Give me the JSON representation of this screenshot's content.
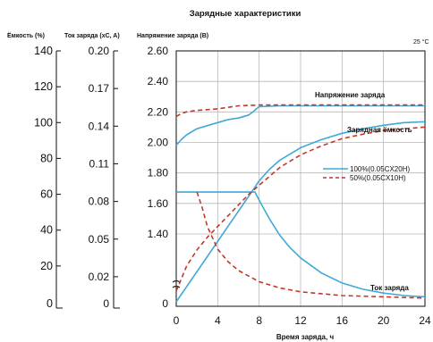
{
  "chart_data": {
    "type": "line",
    "title": "Зарядные характеристики",
    "temperature": "25 °C",
    "xlabel": "Время заряда, ч",
    "x_ticks": [
      "0",
      "4",
      "8",
      "12",
      "16",
      "20",
      "24"
    ],
    "xlim": [
      0,
      24
    ],
    "axes": {
      "capacity": {
        "label": "Ёмкость (%)",
        "ticks": [
          "140",
          "120",
          "100",
          "80",
          "60",
          "40",
          "20",
          "0"
        ]
      },
      "current": {
        "label": "Ток заряда (xC, A)",
        "ticks": [
          "0.20",
          "0.17",
          "0.14",
          "0.11",
          "0.08",
          "0.05",
          "0.02",
          "0"
        ]
      },
      "voltage": {
        "label": "Напряжение заряда (В)",
        "ticks": [
          "2.60",
          "2.40",
          "2.20",
          "2.00",
          "1.80",
          "1.60",
          "1.40",
          "0"
        ]
      }
    },
    "grid": true,
    "annotations": {
      "voltage": "Напряжение заряда",
      "capacity": "Зарядная ёмкость",
      "current": "Ток заряда"
    },
    "legend": {
      "position": "center-right",
      "items": [
        {
          "label": "100%(0.05CX20H)",
          "color": "#3fa9d8",
          "style": "solid"
        },
        {
          "label": "50%(0.05CX10H)",
          "color": "#c0392b",
          "style": "dashed"
        }
      ]
    },
    "series": [
      {
        "name": "100%(0.05CX20H)",
        "quantity": "voltage",
        "unit": "V",
        "color": "#3fa9d8",
        "style": "solid",
        "x": [
          0,
          0.5,
          1,
          2,
          3,
          4,
          5,
          6,
          7,
          7.4,
          8,
          10,
          14,
          18,
          24
        ],
        "y": [
          1.98,
          2.02,
          2.05,
          2.09,
          2.11,
          2.13,
          2.15,
          2.16,
          2.18,
          2.2,
          2.235,
          2.24,
          2.24,
          2.24,
          2.24
        ]
      },
      {
        "name": "100%(0.05CX20H)",
        "quantity": "capacity",
        "unit": "%",
        "color": "#3fa9d8",
        "style": "solid",
        "x": [
          0,
          7.6,
          8,
          9,
          10,
          12,
          14,
          16,
          18,
          20,
          22,
          24
        ],
        "y": [
          0,
          64,
          67.5,
          74,
          79,
          86,
          90.5,
          94,
          96.5,
          98.5,
          100,
          100.5
        ]
      },
      {
        "name": "100%(0.05CX20H)",
        "quantity": "current",
        "unit": "xC",
        "color": "#3fa9d8",
        "style": "solid",
        "x": [
          0,
          7.6,
          8,
          9,
          10,
          11,
          12,
          14,
          16,
          18,
          20,
          22,
          24
        ],
        "y": [
          0.0875,
          0.0875,
          0.081,
          0.066,
          0.053,
          0.043,
          0.035,
          0.023,
          0.015,
          0.01,
          0.007,
          0.005,
          0.004
        ]
      },
      {
        "name": "50%(0.05CX10H)",
        "quantity": "voltage",
        "unit": "V",
        "color": "#c0392b",
        "style": "dashed",
        "x": [
          0,
          0.5,
          1,
          2,
          3,
          4,
          5,
          6,
          8,
          12,
          16,
          20,
          24
        ],
        "y": [
          2.17,
          2.19,
          2.2,
          2.21,
          2.215,
          2.22,
          2.23,
          2.24,
          2.245,
          2.245,
          2.245,
          2.245,
          2.245
        ]
      },
      {
        "name": "50%(0.05CX10H)",
        "quantity": "capacity",
        "unit": "%",
        "color": "#c0392b",
        "style": "dashed",
        "x": [
          0,
          1,
          2,
          3,
          4,
          5,
          6,
          7,
          8,
          10,
          12,
          14,
          16,
          18,
          20,
          24
        ],
        "y": [
          6,
          20,
          29,
          36,
          42,
          48,
          54,
          60,
          65,
          75,
          82,
          87,
          91,
          93.5,
          95.5,
          97.5
        ]
      },
      {
        "name": "50%(0.05CX10H)",
        "quantity": "current",
        "unit": "xC",
        "color": "#c0392b",
        "style": "dashed",
        "x": [
          2,
          2.5,
          3,
          4,
          5,
          6,
          8,
          10,
          12,
          16,
          20,
          24
        ],
        "y": [
          0.0875,
          0.075,
          0.06,
          0.042,
          0.032,
          0.025,
          0.016,
          0.011,
          0.008,
          0.005,
          0.004,
          0.003
        ]
      }
    ]
  }
}
